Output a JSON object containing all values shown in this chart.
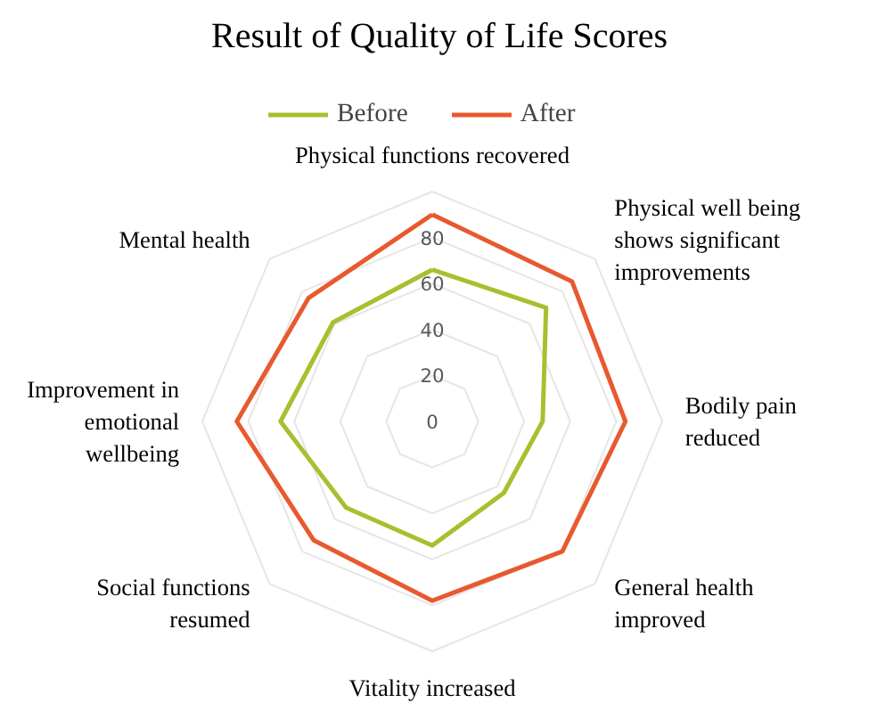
{
  "chart_data": {
    "type": "radar",
    "title": "Result of Quality of Life Scores",
    "categories": [
      "Physical functions recovered",
      "Physical well being\nshows significant\nimprovements",
      "Bodily pain\nreduced",
      "General health\nimproved",
      "Vitality increased",
      "Social functions\nresumed",
      "Improvement in\nemotional\nwellbeing",
      "Mental health"
    ],
    "series": [
      {
        "name": "Before",
        "color": "#a5c12f",
        "values": [
          66,
          70,
          48,
          44,
          54,
          53,
          66,
          61
        ]
      },
      {
        "name": "After",
        "color": "#e8592f",
        "values": [
          90,
          86,
          84,
          80,
          78,
          73,
          85,
          76
        ]
      }
    ],
    "ylim": [
      0,
      100
    ],
    "yticks": [
      0,
      20,
      40,
      60,
      80
    ],
    "grid": true,
    "legend": "top",
    "marker": "none",
    "line_style": "solid"
  }
}
